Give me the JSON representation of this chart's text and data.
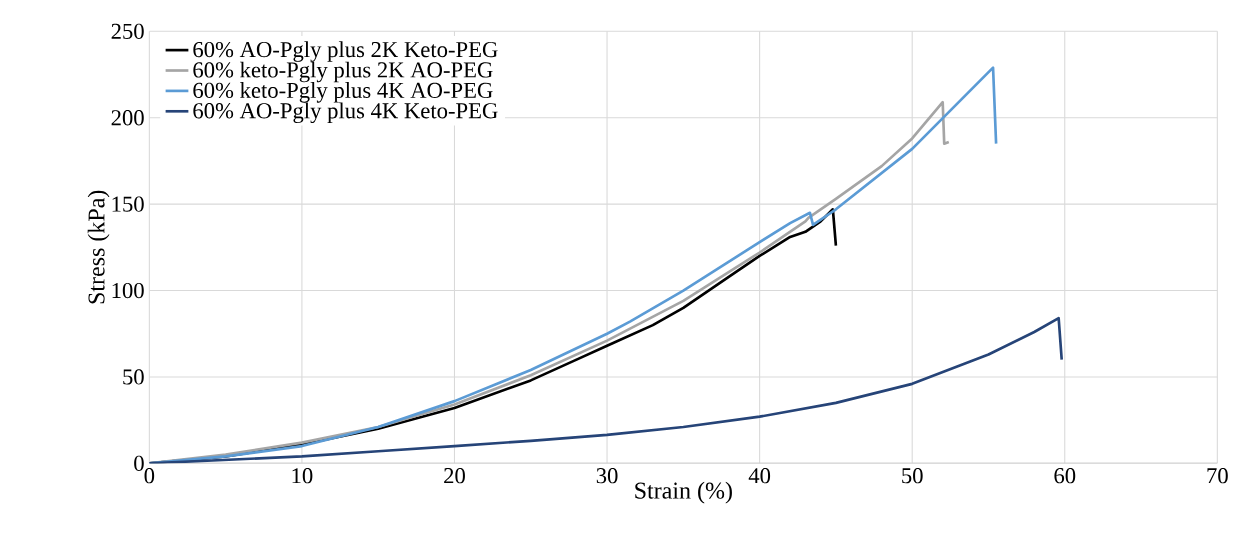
{
  "chart_data": {
    "type": "line",
    "xlabel": "Strain (%)",
    "ylabel": "Stress (kPa)",
    "xlim": [
      0,
      70
    ],
    "ylim": [
      0,
      250
    ],
    "xticks": [
      0,
      10,
      20,
      30,
      40,
      50,
      60,
      70
    ],
    "yticks": [
      0,
      50,
      100,
      150,
      200,
      250
    ],
    "grid": true,
    "legend": "top left",
    "marker": "none",
    "line_style": "solid",
    "series": [
      {
        "name": "60% AO-Pgly plus 2K Keto-PEG",
        "color": "#000000",
        "x": [
          0,
          5,
          10,
          15,
          20,
          25,
          28,
          30,
          33,
          35,
          38,
          40,
          42,
          43,
          44,
          44.8,
          45
        ],
        "values": [
          0,
          4,
          11,
          20,
          32,
          48,
          60,
          68,
          80,
          90,
          108,
          120,
          131,
          134,
          140,
          147,
          126
        ]
      },
      {
        "name": "60% keto-Pgly plus 2K AO-PEG",
        "color": "#a5a5a5",
        "x": [
          0,
          5,
          10,
          15,
          20,
          25,
          30,
          35,
          40,
          43,
          43.2,
          45,
          48,
          50,
          52,
          52.1,
          52.4
        ],
        "values": [
          0,
          5,
          12,
          21,
          34,
          51,
          71,
          94,
          122,
          140,
          142,
          153,
          172,
          188,
          209,
          185,
          186
        ]
      },
      {
        "name": "60% keto-Pgly plus 4K AO-PEG",
        "color": "#5b9bd5",
        "x": [
          0,
          5,
          10,
          15,
          20,
          25,
          30,
          31.5,
          35,
          40,
          42,
          43.3,
          43.5,
          45,
          50,
          55.3,
          55.5
        ],
        "values": [
          0,
          4,
          10,
          21,
          36,
          54,
          75,
          82,
          100,
          128,
          139,
          145,
          138,
          147,
          182,
          229,
          185
        ]
      },
      {
        "name": "60% AO-Pgly plus 4K Keto-PEG",
        "color": "#264478",
        "x": [
          0,
          5,
          10,
          15,
          20,
          25,
          30,
          35,
          40,
          45,
          50,
          55,
          58,
          59.6,
          59.8
        ],
        "values": [
          0,
          2,
          4,
          7,
          10,
          13,
          16.5,
          21,
          27,
          35,
          46,
          63,
          76,
          84,
          60
        ]
      }
    ]
  }
}
